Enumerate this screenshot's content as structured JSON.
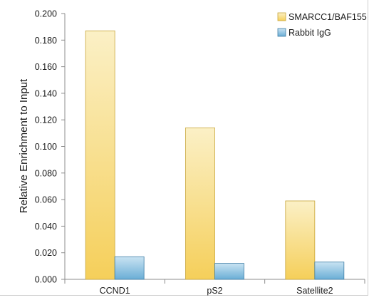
{
  "chart_data": {
    "type": "bar",
    "title": "",
    "xlabel": "",
    "ylabel": "Relative Enrichment to Input",
    "ylim": [
      0,
      0.2
    ],
    "yticks": [
      "0.000",
      "0.020",
      "0.040",
      "0.060",
      "0.080",
      "0.100",
      "0.120",
      "0.140",
      "0.160",
      "0.180",
      "0.200"
    ],
    "categories": [
      "CCND1",
      "pS2",
      "Satellite2"
    ],
    "series": [
      {
        "name": "SMARCC1/BAF155",
        "values": [
          0.187,
          0.114,
          0.059
        ],
        "color": "#f5cf5a"
      },
      {
        "name": "Rabbit IgG",
        "values": [
          0.017,
          0.012,
          0.013
        ],
        "color": "#6aaed6"
      }
    ],
    "grid": false,
    "legend_position": "top-right"
  }
}
